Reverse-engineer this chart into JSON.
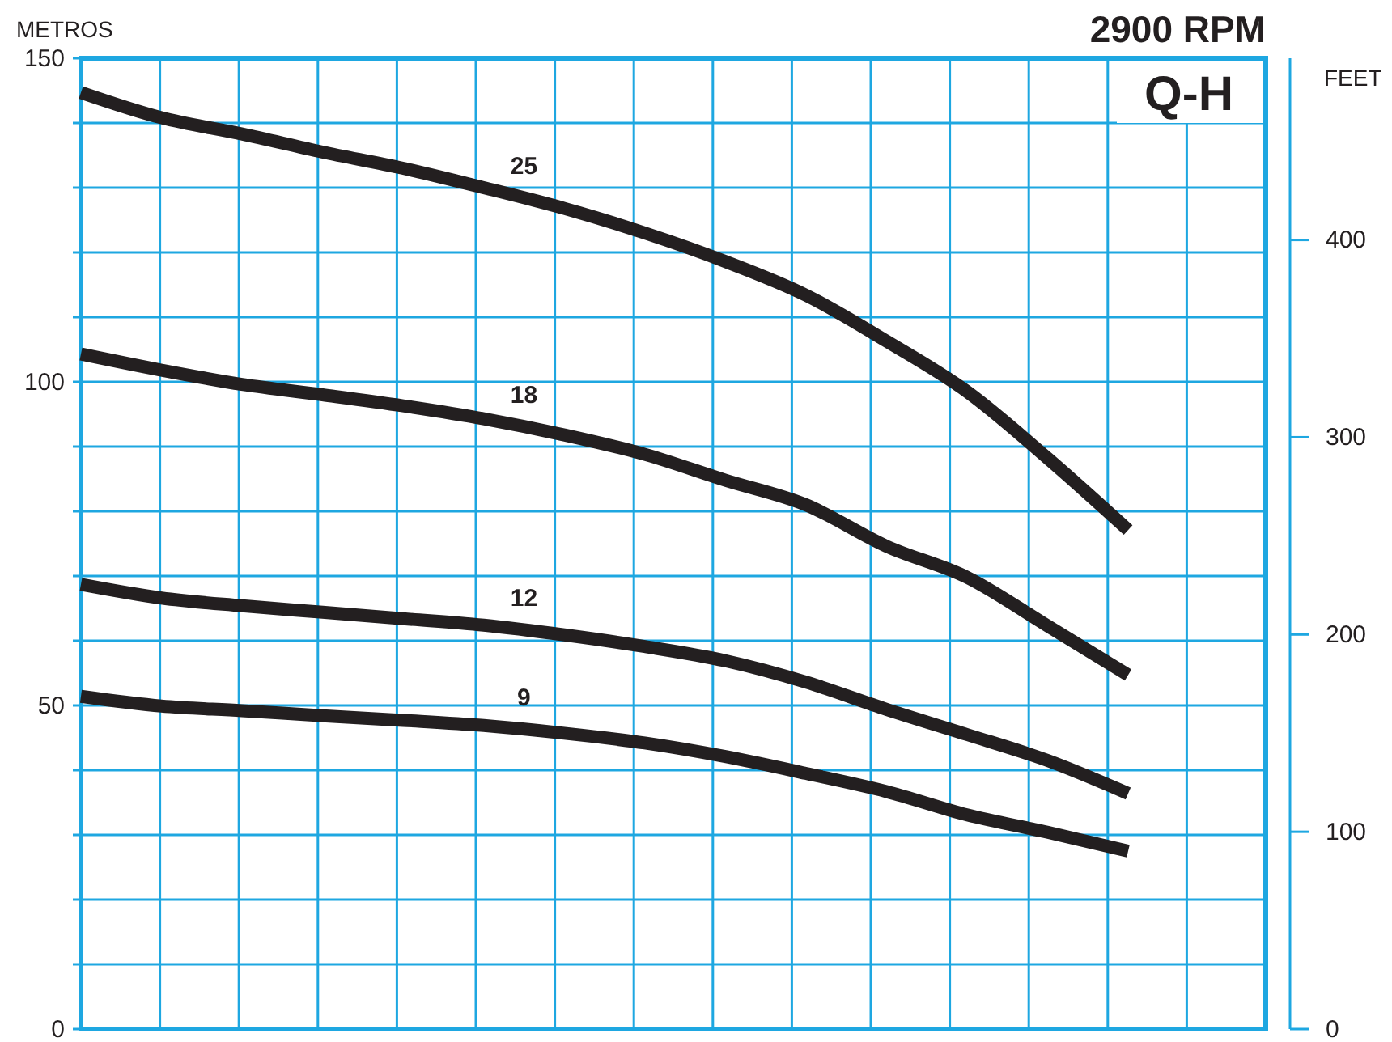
{
  "chart_data": {
    "type": "line",
    "title": "2900 RPM",
    "ylabel": "METROS",
    "y2label": "FEET",
    "annotations": [
      "Q-H"
    ],
    "categories": [
      null,
      null,
      null,
      null,
      null,
      null,
      null,
      null,
      null,
      null,
      null,
      null,
      null,
      null
    ],
    "ylim": [
      0,
      150
    ],
    "yticks": [
      0,
      {
        "value": 10,
        "label": null
      },
      {
        "value": 20,
        "label": null
      },
      {
        "value": 30,
        "label": null
      },
      {
        "value": 40,
        "label": null
      },
      50,
      {
        "value": 60,
        "label": null
      },
      {
        "value": 70,
        "label": null
      },
      {
        "value": 80,
        "label": null
      },
      {
        "value": 90,
        "label": null
      },
      100,
      {
        "value": 110,
        "label": null
      },
      {
        "value": 120,
        "label": null
      },
      {
        "value": 130,
        "label": null
      },
      {
        "value": 140,
        "label": null
      },
      150
    ],
    "y2lim": [
      0,
      492.1
    ],
    "y2ticks": [
      0,
      100,
      200,
      300,
      400
    ],
    "grid": true,
    "line_style": "solid",
    "marker": "none",
    "series": [
      {
        "name": "25",
        "color": "#231f20",
        "values": [
          144.7,
          140.8,
          138.3,
          135.5,
          133,
          130,
          126.8,
          123,
          118.6,
          113.4,
          106.3,
          98.5,
          88.2,
          77.1
        ]
      },
      {
        "name": "18",
        "color": "#231f20",
        "values": [
          104.3,
          101.8,
          99.6,
          98,
          96.3,
          94.3,
          91.8,
          88.8,
          84.8,
          81,
          74.6,
          69.8,
          62.3,
          54.7
        ]
      },
      {
        "name": "12",
        "color": "#231f20",
        "values": [
          68.7,
          66.6,
          65.4,
          64.4,
          63.4,
          62.4,
          60.9,
          59.1,
          56.9,
          53.6,
          49.4,
          45.5,
          41.5,
          36.4
        ]
      },
      {
        "name": "9",
        "color": "#231f20",
        "values": [
          51.4,
          49.9,
          49.2,
          48.4,
          47.7,
          46.9,
          45.7,
          44.2,
          42.1,
          39.5,
          36.7,
          33.1,
          30.4,
          27.5
        ]
      }
    ]
  }
}
